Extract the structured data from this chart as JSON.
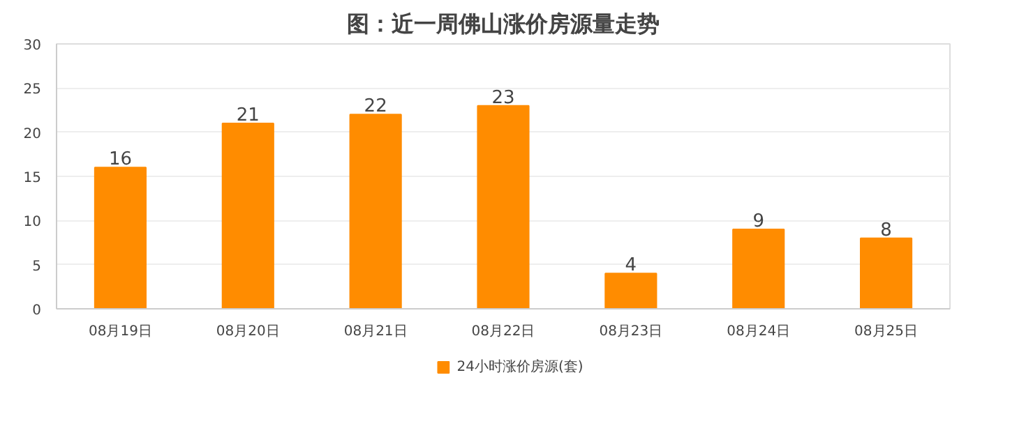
{
  "chart_data": {
    "type": "bar",
    "title": "图：近一周佛山涨价房源量走势",
    "categories": [
      "08月19日",
      "08月20日",
      "08月21日",
      "08月22日",
      "08月23日",
      "08月24日",
      "08月25日"
    ],
    "series": [
      {
        "name": "24小时涨价房源(套)",
        "color": "#ff8c00",
        "values": [
          16,
          21,
          22,
          23,
          4,
          9,
          8
        ]
      }
    ],
    "ylim": [
      0,
      30
    ],
    "yticks": [
      0,
      5,
      10,
      15,
      20,
      25,
      30
    ],
    "grid": "y",
    "legend": "bottom",
    "data_labels": true
  }
}
